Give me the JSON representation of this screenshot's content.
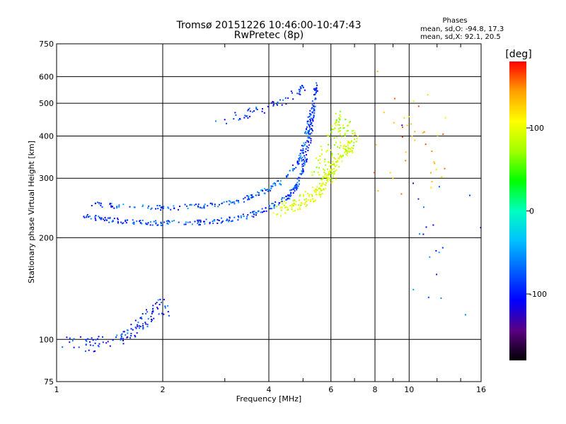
{
  "chart_data": {
    "type": "scatter",
    "title": "Tromsø 20151226 10:46:00-10:47:43",
    "subtitle": "RwPretec (8p)",
    "xlabel": "Frequency [MHz]",
    "ylabel": "Stationary phase Virtual Height [km]",
    "x_scale": "log",
    "y_scale": "log",
    "xlim": [
      1,
      16
    ],
    "ylim": [
      75,
      750
    ],
    "x_ticks": [
      1,
      2,
      4,
      6,
      8,
      10,
      16
    ],
    "x_tick_labels": [
      "1",
      "2",
      "4",
      "6",
      "8",
      "10",
      "16"
    ],
    "y_ticks": [
      75,
      100,
      200,
      300,
      400,
      500,
      600,
      750
    ],
    "y_tick_labels": [
      "75",
      "100",
      "200",
      "300",
      "400",
      "500",
      "600",
      "750"
    ],
    "grid": true,
    "phase_stats": {
      "heading": "Phases",
      "line_o": "mean, sd,O: -94.8, 17.3",
      "line_x": "mean, sd,X:  92.1, 20.5"
    },
    "colorbar": {
      "unit": "[deg]",
      "range": [
        -180,
        180
      ],
      "ticks": [
        100,
        0,
        -100
      ],
      "tick_labels": [
        "100",
        "0",
        "-100"
      ],
      "colors": [
        "#000000",
        "#5a0080",
        "#0000ff",
        "#00a0ff",
        "#00ffff",
        "#00ff80",
        "#00ff00",
        "#a0ff00",
        "#ffff00",
        "#ffa000",
        "#ff0000"
      ]
    },
    "traces": [
      {
        "name_hidden": "",
        "points": [
          [
            1.05,
            98
          ],
          [
            1.15,
            99
          ],
          [
            1.25,
            96
          ],
          [
            1.35,
            98
          ],
          [
            1.5,
            101
          ],
          [
            1.6,
            103
          ],
          [
            1.7,
            108
          ],
          [
            1.8,
            115
          ],
          [
            1.9,
            122
          ],
          [
            2.0,
            130
          ],
          [
            2.05,
            120
          ]
        ],
        "phase": -100,
        "spread": 0.03,
        "n": 120
      },
      {
        "points": [
          [
            1.2,
            233
          ],
          [
            1.4,
            226
          ],
          [
            1.7,
            222
          ],
          [
            2.0,
            221
          ],
          [
            2.5,
            222
          ],
          [
            3.0,
            225
          ],
          [
            3.5,
            232
          ],
          [
            4.0,
            245
          ],
          [
            4.5,
            262
          ],
          [
            4.8,
            285
          ],
          [
            5.0,
            320
          ],
          [
            5.2,
            380
          ],
          [
            5.35,
            470
          ],
          [
            5.45,
            570
          ]
        ],
        "phase": -95,
        "spread": 0.012,
        "n": 330
      },
      {
        "points": [
          [
            1.25,
            252
          ],
          [
            1.5,
            248
          ],
          [
            2.0,
            245
          ],
          [
            2.5,
            247
          ],
          [
            3.0,
            252
          ],
          [
            3.5,
            262
          ],
          [
            4.0,
            278
          ],
          [
            4.5,
            302
          ],
          [
            4.9,
            340
          ],
          [
            5.1,
            400
          ],
          [
            5.3,
            480
          ]
        ],
        "phase": -90,
        "spread": 0.012,
        "n": 220
      },
      {
        "points": [
          [
            2.8,
            430
          ],
          [
            3.2,
            455
          ],
          [
            3.6,
            470
          ],
          [
            4.0,
            485
          ],
          [
            4.4,
            505
          ],
          [
            4.8,
            540
          ],
          [
            5.0,
            560
          ]
        ],
        "phase": -100,
        "spread": 0.02,
        "n": 60
      },
      {
        "points": [
          [
            4.2,
            240
          ],
          [
            4.8,
            250
          ],
          [
            5.3,
            265
          ],
          [
            5.7,
            285
          ],
          [
            6.0,
            305
          ],
          [
            6.3,
            340
          ],
          [
            6.6,
            370
          ],
          [
            6.9,
            375
          ]
        ],
        "phase": 95,
        "spread": 0.03,
        "n": 220
      },
      {
        "points": [
          [
            5.5,
            300
          ],
          [
            5.8,
            330
          ],
          [
            6.0,
            380
          ],
          [
            6.2,
            420
          ],
          [
            6.5,
            450
          ],
          [
            6.9,
            400
          ]
        ],
        "phase": 80,
        "spread": 0.05,
        "n": 100
      },
      {
        "points": [
          [
            8.5,
            300
          ],
          [
            9.5,
            480
          ],
          [
            10.5,
            380
          ],
          [
            12.0,
            350
          ]
        ],
        "phase": 140,
        "spread": 0.2,
        "n": 40
      },
      {
        "points": [
          [
            10.5,
            300
          ],
          [
            12.0,
            200
          ],
          [
            15.5,
            150
          ]
        ],
        "phase": -95,
        "spread": 0.25,
        "n": 20
      }
    ]
  }
}
